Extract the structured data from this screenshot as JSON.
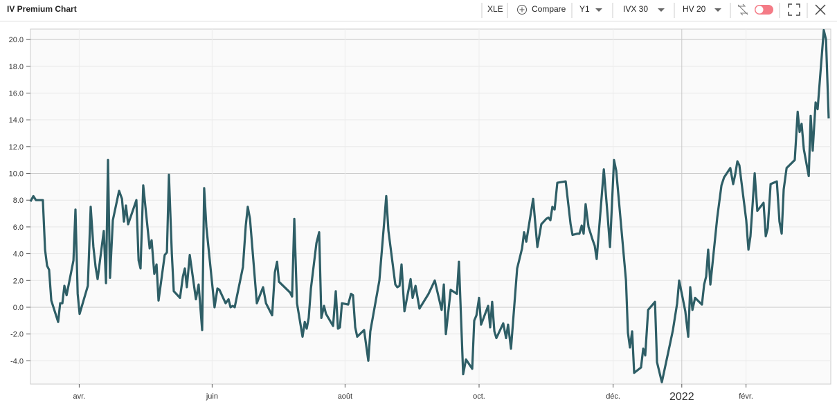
{
  "header": {
    "title": "IV Premium Chart",
    "symbol": "XLE",
    "compare": "Compare",
    "period": "Y1",
    "iv": "IVX 30",
    "hv": "HV 20"
  },
  "chart_data": {
    "type": "line",
    "color": "#2e5e66",
    "grid": true,
    "x": [
      0,
      1.3,
      2.5,
      5.6,
      6.6,
      7.5,
      8.4,
      9.4,
      12.5,
      13.4,
      14.4,
      15.3,
      16.3,
      19.4,
      20.3,
      21.3,
      22.2,
      25.9,
      27.2,
      28.4,
      29.4,
      30.3,
      33.1,
      34.1,
      35,
      35.9,
      37.2,
      40,
      41.3,
      42.2,
      43.1,
      44.1,
      47.8,
      48.8,
      49.7,
      50.9,
      53.8,
      54.7,
      55.9,
      56.9,
      57.8,
      60.6,
      61.6,
      62.5,
      63.8,
      64.7,
      67.5,
      68.8,
      69.7,
      70.6,
      71.9,
      74.7,
      75.9,
      77.5,
      78.4,
      79.4,
      83.1,
      84.4,
      85.3,
      88.1,
      89.4,
      90.3,
      91.3,
      92.2,
      95.9,
      97.2,
      98.1,
      99.1,
      102.2,
      105,
      106.3,
      109.1,
      110.3,
      111.3,
      112.2,
      117.2,
      118.1,
      119.1,
      120.3,
      122.8,
      123.8,
      124.7,
      125.6,
      126.6,
      129.1,
      130.3,
      131.3,
      132.5,
      133.4,
      136.6,
      137.8,
      138.8,
      139.7,
      140.6,
      143.4,
      144.7,
      145.6,
      146.6,
      147.5,
      150.6,
      152.5,
      153.4,
      157.5,
      159.7,
      160.6,
      161.6,
      164.7,
      165.6,
      166.6,
      167.5,
      168.8,
      171.6,
      172.5,
      173.8,
      175.6,
      179.7,
      182.5,
      185.6,
      186.6,
      187.5,
      189.7,
      192.5,
      193.4,
      195.3,
      196.6,
      199.4,
      200.3,
      201.3,
      202.5,
      203.4,
      206.6,
      207.5,
      208.4,
      209.4,
      210.3,
      213.4,
      214.7,
      215.6,
      216.9,
      219.7,
      221.9,
      222.8,
      223.8,
      226.9,
      228.8,
      230.6,
      232.8,
      233.8,
      234.7,
      235.6,
      236.6,
      237.8,
      241.6,
      243.8,
      244.7,
      246.9,
      247.8,
      248.8,
      249.7,
      250.6,
      251.9,
      253.8,
      254.7,
      255.6,
      258.8,
      260.6,
      261.6,
      263.4,
      264.4,
      265.6,
      268.8,
      269.7,
      270.6,
      271.6,
      272.5,
      275.6,
      276.6,
      277.5,
      278.8,
      281.9,
      282.8,
      285,
      288.1,
      290,
      291.9,
      292.8,
      295.6,
      296.9,
      297.8,
      298.8,
      300,
      303.1,
      304.1,
      305,
      305.9,
      306.9,
      310,
      311.9,
      313.1,
      315.9,
      317.2,
      318.1,
      319.1,
      320,
      323.1,
      324.1,
      325,
      326.9,
      328.1,
      330.9,
      331.9,
      332.8,
      334.1,
      336.9,
      338.1,
      339.1,
      340,
      341.3,
      345,
      346.3,
      347.2,
      348.1,
      349.1,
      351.3,
      352.2,
      353.1,
      354.4,
      355.3,
      358.1,
      359.1,
      360.3
    ],
    "values": [
      7.9,
      8.3,
      8.0,
      8.0,
      4.3,
      3.1,
      2.8,
      0.5,
      -1.1,
      0.3,
      0.3,
      1.6,
      0.9,
      3.5,
      7.3,
      1.0,
      -0.5,
      1.6,
      7.5,
      4.5,
      3.0,
      2.1,
      5.7,
      1.8,
      11.0,
      2.2,
      6.5,
      8.7,
      8.1,
      6.4,
      7.6,
      6.2,
      8.0,
      3.5,
      2.9,
      9.1,
      4.4,
      5.0,
      2.5,
      3.2,
      0.5,
      3.9,
      4.1,
      9.9,
      4.0,
      1.2,
      0.7,
      2.3,
      2.9,
      1.5,
      3.9,
      0.6,
      1.7,
      -1.7,
      8.9,
      6.0,
      0.0,
      1.4,
      1.3,
      0.3,
      0.6,
      0.0,
      0.1,
      0.0,
      3.0,
      6.1,
      7.5,
      6.6,
      0.3,
      1.5,
      0.3,
      -0.6,
      2.6,
      3.4,
      1.9,
      1.1,
      0.8,
      6.6,
      0.3,
      -2.2,
      -1.1,
      -1.6,
      -0.8,
      1.4,
      4.8,
      5.6,
      -0.8,
      0.1,
      -0.5,
      -1.4,
      1.2,
      -1.6,
      -1.5,
      0.3,
      0.2,
      1.0,
      0.9,
      -1.5,
      -2.2,
      -1.7,
      -4.0,
      -1.8,
      2.0,
      6.4,
      8.3,
      5.7,
      1.7,
      1.5,
      1.6,
      3.2,
      -0.3,
      2.1,
      0.7,
      1.6,
      -0.1,
      1.0,
      2.0,
      -0.2,
      1.7,
      -2.0,
      1.3,
      1.0,
      3.4,
      -5.0,
      -3.9,
      -4.6,
      -1.0,
      -0.6,
      0.7,
      -1.3,
      0.1,
      -1.5,
      0.4,
      -1.8,
      -2.3,
      -1.2,
      -2.3,
      -1.3,
      -3.1,
      2.9,
      4.4,
      5.6,
      4.9,
      8.1,
      4.5,
      6.2,
      6.6,
      6.7,
      6.5,
      7.5,
      7.3,
      9.3,
      9.4,
      6.2,
      5.4,
      5.5,
      5.5,
      6.1,
      5.5,
      7.7,
      6.0,
      5.0,
      4.6,
      3.6,
      10.3,
      6.7,
      4.5,
      11.0,
      10.2,
      8.0,
      2.0,
      -1.9,
      -3.0,
      -1.8,
      -4.9,
      -4.5,
      -3.1,
      -3.6,
      -0.2,
      0.4,
      -4.1,
      -5.6,
      -3.2,
      -1.7,
      0.3,
      2.0,
      -0.3,
      -2.2,
      1.5,
      -0.2,
      0.7,
      0.2,
      1.7,
      2.3,
      4.3,
      1.7,
      6.7,
      9.1,
      9.7,
      10.4,
      9.2,
      9.9,
      10.9,
      10.6,
      6.5,
      4.3,
      5.3,
      10.0,
      7.2,
      7.8,
      5.3,
      5.9,
      9.2,
      9.4,
      6.4,
      5.5,
      8.8,
      10.4,
      11.0,
      14.6,
      13.1,
      13.7,
      11.8,
      9.8,
      14.3,
      11.7,
      15.3,
      14.8,
      20.7,
      20.0,
      14.1
    ],
    "xlim": [
      0,
      361.25
    ],
    "xticks": [
      {
        "value": 22,
        "label": "avr."
      },
      {
        "value": 82,
        "label": "juin"
      },
      {
        "value": 142,
        "label": "août"
      },
      {
        "value": 202.5,
        "label": "oct."
      },
      {
        "value": 263,
        "label": "déc."
      },
      {
        "value": 294,
        "label": "2022"
      },
      {
        "value": 323,
        "label": "févr."
      }
    ],
    "ylim": [
      -5.74,
      20.78
    ],
    "yticks": [
      {
        "value": -4,
        "label": "-4.0"
      },
      {
        "value": -2,
        "label": "-2.0"
      },
      {
        "value": 0,
        "label": "0.0"
      },
      {
        "value": 2,
        "label": "2.0"
      },
      {
        "value": 4,
        "label": "4.0"
      },
      {
        "value": 6,
        "label": "6.0"
      },
      {
        "value": 8,
        "label": "8.0"
      },
      {
        "value": 10,
        "label": "10.0"
      },
      {
        "value": 12,
        "label": "12.0"
      },
      {
        "value": 14,
        "label": "14.0"
      },
      {
        "value": 16,
        "label": "16.0"
      },
      {
        "value": 18,
        "label": "18.0"
      },
      {
        "value": 20,
        "label": "20.0"
      }
    ]
  }
}
